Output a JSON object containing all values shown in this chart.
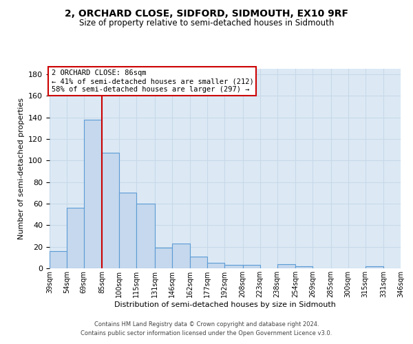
{
  "title1": "2, ORCHARD CLOSE, SIDFORD, SIDMOUTH, EX10 9RF",
  "title2": "Size of property relative to semi-detached houses in Sidmouth",
  "xlabel": "Distribution of semi-detached houses by size in Sidmouth",
  "ylabel": "Number of semi-detached properties",
  "bar_color": "#c5d8ed",
  "bar_edge_color": "#5b9bd5",
  "bar_heights": [
    16,
    56,
    138,
    107,
    70,
    60,
    19,
    23,
    11,
    5,
    3,
    3,
    0,
    4,
    2,
    0,
    0,
    0,
    2,
    0
  ],
  "bin_edges": [
    39,
    54,
    69,
    85,
    100,
    115,
    131,
    146,
    162,
    177,
    192,
    208,
    223,
    238,
    254,
    269,
    285,
    300,
    315,
    331,
    346
  ],
  "x_tick_labels": [
    "39sqm",
    "54sqm",
    "69sqm",
    "85sqm",
    "100sqm",
    "115sqm",
    "131sqm",
    "146sqm",
    "162sqm",
    "177sqm",
    "192sqm",
    "208sqm",
    "223sqm",
    "238sqm",
    "254sqm",
    "269sqm",
    "285sqm",
    "300sqm",
    "315sqm",
    "331sqm",
    "346sqm"
  ],
  "red_line_x": 85,
  "ylim": [
    0,
    185
  ],
  "yticks": [
    0,
    20,
    40,
    60,
    80,
    100,
    120,
    140,
    160,
    180
  ],
  "annotation_title": "2 ORCHARD CLOSE: 86sqm",
  "annotation_line1": "← 41% of semi-detached houses are smaller (212)",
  "annotation_line2": "58% of semi-detached houses are larger (297) →",
  "annotation_box_color": "#ffffff",
  "annotation_box_edge_color": "#cc0000",
  "grid_color": "#c8d8e8",
  "background_color": "#dce9f5",
  "footer1": "Contains HM Land Registry data © Crown copyright and database right 2024.",
  "footer2": "Contains public sector information licensed under the Open Government Licence v3.0."
}
